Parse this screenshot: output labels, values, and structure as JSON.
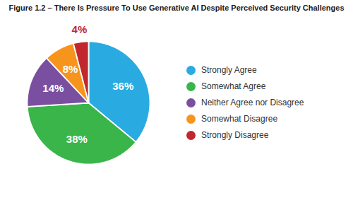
{
  "chart_data": {
    "type": "pie",
    "title": "Figure 1.2 – There Is Pressure To Use Generative AI Despite Perceived Security Challenges",
    "categories": [
      "Strongly Agree",
      "Somewhat Agree",
      "Neither Agree nor Disagree",
      "Somewhat Disagree",
      "Strongly Disagree"
    ],
    "values": [
      36,
      38,
      14,
      8,
      4
    ],
    "value_labels": [
      "36%",
      "38%",
      "14%",
      "8%",
      "4%"
    ],
    "colors": [
      "#29ABE2",
      "#39B54A",
      "#7B4FA0",
      "#F7941D",
      "#C1272D"
    ],
    "data_labels": true,
    "legend": "right"
  }
}
